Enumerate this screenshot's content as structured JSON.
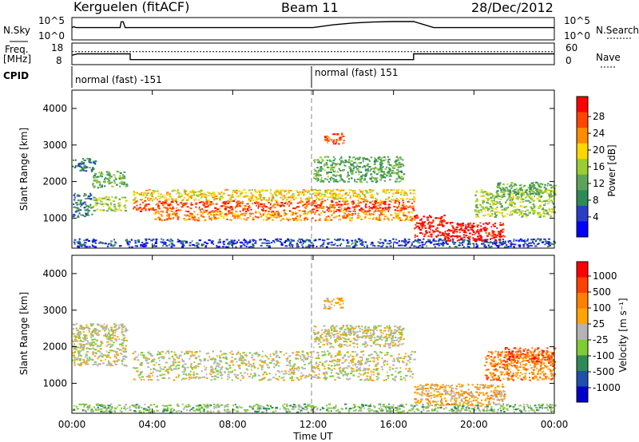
{
  "header": {
    "station": "Kerguelen (fitACF)",
    "beam": "Beam 11",
    "date": "28/Dec/2012"
  },
  "labels": {
    "nsky": "N.Sky",
    "nsearch": "N.Search",
    "nave": "Nave",
    "freq_line1": "Freq.",
    "freq_line2": "[MHz]",
    "cpid": "CPID"
  },
  "cpid_modes": [
    {
      "label": "normal (fast) -151",
      "start_hour": 0
    },
    {
      "label": "normal (fast) 151",
      "start_hour": 12
    }
  ],
  "colors": {
    "power_scale": [
      "#0000ff",
      "#2a3cc8",
      "#2e8b57",
      "#5aa55a",
      "#9acd32",
      "#ffd700",
      "#ff8c00",
      "#ff4500",
      "#ff0000"
    ],
    "velocity_scale": [
      "#0000c8",
      "#1f4fb0",
      "#2e8b57",
      "#7fcc33",
      "#b4b4b4",
      "#ffa500",
      "#ff8000",
      "#ff4000",
      "#ff0000"
    ]
  },
  "chart_data": [
    {
      "type": "line",
      "name": "noise-panel",
      "series": [
        {
          "name": "N.Sky",
          "x": [
            0.0,
            0.1,
            0.2,
            2.4,
            2.45,
            2.55,
            2.65,
            2.7,
            12.0,
            13.0,
            14.0,
            15.0,
            16.0,
            17.0,
            18.0,
            24.0
          ],
          "y": [
            5.0,
            5.4,
            5.0,
            5.0,
            7.5,
            7.5,
            5.0,
            5.0,
            5.0,
            6.2,
            7.0,
            7.4,
            7.6,
            7.6,
            5.0,
            5.0
          ]
        }
      ],
      "left_ticks": [
        "10^5",
        "10^0"
      ],
      "right_ticks": [
        "10^5",
        "10^0"
      ],
      "xlim": [
        0,
        24
      ]
    },
    {
      "type": "line",
      "name": "frequency-panel",
      "series": [
        {
          "name": "Freq",
          "x": [
            0.0,
            0.3,
            2.9,
            2.9,
            17.0,
            17.0,
            24.0
          ],
          "y": [
            12.5,
            13.2,
            13.2,
            10.2,
            10.2,
            13.2,
            13.2
          ]
        },
        {
          "name": "Nave",
          "x": [
            0,
            24
          ],
          "y": [
            38,
            38
          ]
        }
      ],
      "left_ticks": [
        "18",
        "8"
      ],
      "right_ticks": [
        "60",
        "0"
      ],
      "xlim": [
        0,
        24
      ]
    },
    {
      "type": "heatmap",
      "name": "power-panel",
      "ylabel": "Slant Range [km]",
      "xlim": [
        0,
        24
      ],
      "ylim": [
        180,
        4500
      ],
      "yticks": [
        "1000",
        "2000",
        "3000",
        "4000"
      ],
      "colorbar_label": "Power [dB]",
      "colorbar_ticks": [
        "4",
        "8",
        "12",
        "16",
        "20",
        "24",
        "28"
      ],
      "regions": [
        {
          "t": [
            0.0,
            1.2
          ],
          "r": [
            2300,
            2650
          ],
          "level": 2
        },
        {
          "t": [
            1.0,
            2.7
          ],
          "r": [
            1850,
            2300
          ],
          "level": 3
        },
        {
          "t": [
            0.0,
            1.0
          ],
          "r": [
            1050,
            1700
          ],
          "level": 2
        },
        {
          "t": [
            1.0,
            2.7
          ],
          "r": [
            1200,
            1600
          ],
          "level": 4
        },
        {
          "t": [
            3.0,
            17.0
          ],
          "r": [
            1200,
            1500
          ],
          "level": 7
        },
        {
          "t": [
            3.0,
            17.0
          ],
          "r": [
            1500,
            1800
          ],
          "level": 5
        },
        {
          "t": [
            4.0,
            17.0
          ],
          "r": [
            950,
            1200
          ],
          "level": 6
        },
        {
          "t": [
            0.0,
            24.0
          ],
          "r": [
            230,
            450
          ],
          "level": 1
        },
        {
          "t": [
            12.0,
            16.5
          ],
          "r": [
            2000,
            2700
          ],
          "level": 3
        },
        {
          "t": [
            12.5,
            13.5
          ],
          "r": [
            3050,
            3350
          ],
          "level": 7
        },
        {
          "t": [
            17.0,
            18.5
          ],
          "r": [
            500,
            1100
          ],
          "level": 8
        },
        {
          "t": [
            18.5,
            21.5
          ],
          "r": [
            400,
            900
          ],
          "level": 8
        },
        {
          "t": [
            20.0,
            24.0
          ],
          "r": [
            1050,
            1800
          ],
          "level": 4
        },
        {
          "t": [
            21.0,
            24.0
          ],
          "r": [
            1600,
            2000
          ],
          "level": 3
        }
      ]
    },
    {
      "type": "heatmap",
      "name": "velocity-panel",
      "ylabel": "Slant Range [km]",
      "xlabel": "Time UT",
      "xlim": [
        0,
        24
      ],
      "ylim": [
        180,
        4500
      ],
      "yticks": [
        "1000",
        "2000",
        "3000",
        "4000"
      ],
      "xticks": [
        "00:00",
        "04:00",
        "08:00",
        "12:00",
        "16:00",
        "20:00",
        "00:00"
      ],
      "colorbar_label": "Velocity [m s⁻¹]",
      "colorbar_ticks": [
        "1000",
        "500",
        "100",
        "25",
        "-25",
        "-100",
        "-500",
        "-1000"
      ],
      "regions": [
        {
          "t": [
            0.0,
            2.7
          ],
          "r": [
            1500,
            2650
          ],
          "level": 4
        },
        {
          "t": [
            3.0,
            17.0
          ],
          "r": [
            1100,
            1900
          ],
          "level": 4
        },
        {
          "t": [
            12.0,
            16.5
          ],
          "r": [
            2000,
            2600
          ],
          "level": 4
        },
        {
          "t": [
            12.5,
            13.5
          ],
          "r": [
            3050,
            3350
          ],
          "level": 5
        },
        {
          "t": [
            0.0,
            24.0
          ],
          "r": [
            230,
            450
          ],
          "level": 3
        },
        {
          "t": [
            17.0,
            21.5
          ],
          "r": [
            400,
            1000
          ],
          "level": 5
        },
        {
          "t": [
            20.5,
            24.0
          ],
          "r": [
            1100,
            1900
          ],
          "level": 6
        },
        {
          "t": [
            21.5,
            24.0
          ],
          "r": [
            1600,
            2000
          ],
          "level": 7
        }
      ]
    }
  ]
}
